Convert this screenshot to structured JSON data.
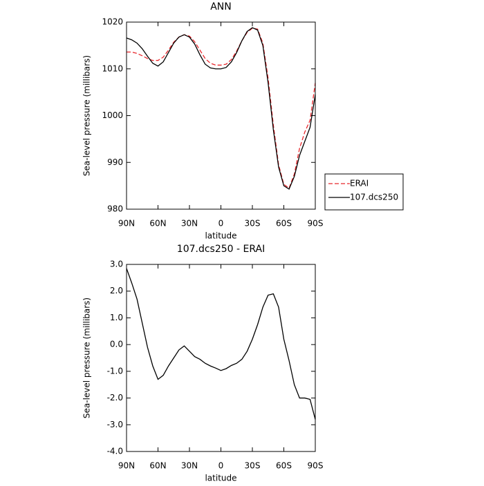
{
  "chart_data": [
    {
      "type": "line",
      "title": "ANN",
      "xlabel": "latitude",
      "ylabel": "Sea-level pressure (millibars)",
      "x": [
        90,
        85,
        80,
        75,
        70,
        65,
        60,
        55,
        50,
        45,
        40,
        35,
        30,
        25,
        20,
        15,
        10,
        5,
        0,
        -5,
        -10,
        -15,
        -20,
        -25,
        -30,
        -35,
        -40,
        -45,
        -50,
        -55,
        -60,
        -65,
        -70,
        -75,
        -80,
        -85,
        -90
      ],
      "series": [
        {
          "name": "ERAI",
          "color": "#e8262b",
          "dash": "dashed",
          "values": [
            1013.6,
            1013.6,
            1013.3,
            1012.8,
            1012.2,
            1011.8,
            1011.8,
            1012.5,
            1014.0,
            1015.7,
            1016.8,
            1017.3,
            1017.0,
            1015.8,
            1014.0,
            1012.2,
            1011.2,
            1010.8,
            1010.8,
            1011.0,
            1012.0,
            1013.8,
            1016.0,
            1017.8,
            1018.7,
            1018.5,
            1015.5,
            1008.0,
            998.0,
            989.5,
            985.3,
            984.5,
            987.5,
            993.0,
            996.5,
            999.0,
            1007.0
          ]
        },
        {
          "name": "107.dcs250",
          "color": "#000000",
          "dash": "solid",
          "values": [
            1016.6,
            1016.2,
            1015.5,
            1014.3,
            1012.7,
            1011.2,
            1010.6,
            1011.5,
            1013.5,
            1015.5,
            1016.8,
            1017.3,
            1016.8,
            1015.3,
            1013.0,
            1011.0,
            1010.2,
            1010.0,
            1010.0,
            1010.3,
            1011.5,
            1013.5,
            1016.0,
            1018.0,
            1018.8,
            1018.3,
            1015.0,
            1007.0,
            997.0,
            989.0,
            985.0,
            984.3,
            987.0,
            991.5,
            994.5,
            997.5,
            1004.5
          ]
        }
      ],
      "xlim": [
        90,
        -90
      ],
      "xticks": [
        {
          "value": 90,
          "label": "90N"
        },
        {
          "value": 60,
          "label": "60N"
        },
        {
          "value": 30,
          "label": "30N"
        },
        0,
        {
          "value": -30,
          "label": "30S"
        },
        {
          "value": -60,
          "label": "60S"
        },
        {
          "value": -90,
          "label": "90S"
        }
      ],
      "ylim": [
        980,
        1020
      ],
      "yticks": [
        980,
        990,
        1000,
        1010,
        1020
      ],
      "legend": "right"
    },
    {
      "type": "line",
      "title": "107.dcs250 - ERAI",
      "xlabel": "latitude",
      "ylabel": "Sea-level pressure (millibars)",
      "x": [
        90,
        85,
        80,
        75,
        70,
        65,
        60,
        55,
        50,
        45,
        40,
        35,
        30,
        25,
        20,
        15,
        10,
        5,
        0,
        -5,
        -10,
        -15,
        -20,
        -25,
        -30,
        -35,
        -40,
        -45,
        -50,
        -55,
        -60,
        -65,
        -70,
        -75,
        -80,
        -85,
        -90
      ],
      "values": [
        2.85,
        2.3,
        1.7,
        0.8,
        -0.1,
        -0.8,
        -1.3,
        -1.15,
        -0.8,
        -0.5,
        -0.2,
        -0.05,
        -0.25,
        -0.45,
        -0.55,
        -0.7,
        -0.8,
        -0.88,
        -0.97,
        -0.9,
        -0.78,
        -0.7,
        -0.55,
        -0.25,
        0.2,
        0.75,
        1.4,
        1.85,
        1.9,
        1.4,
        0.2,
        -0.6,
        -1.5,
        -2.0,
        -2.0,
        -2.05,
        -2.8
      ],
      "color": "#000000",
      "xlim": [
        90,
        -90
      ],
      "xticks": [
        {
          "value": 90,
          "label": "90N"
        },
        {
          "value": 60,
          "label": "60N"
        },
        {
          "value": 30,
          "label": "30N"
        },
        0,
        {
          "value": -30,
          "label": "30S"
        },
        {
          "value": -60,
          "label": "60S"
        },
        {
          "value": -90,
          "label": "90S"
        }
      ],
      "ylim": [
        -4,
        3
      ],
      "yticks": [
        {
          "value": -4,
          "label": "-4.0"
        },
        {
          "value": -3,
          "label": "-3.0"
        },
        {
          "value": -2,
          "label": "-2.0"
        },
        {
          "value": -1,
          "label": "-1.0"
        },
        {
          "value": 0,
          "label": "0.0"
        },
        {
          "value": 1,
          "label": "1.0"
        },
        {
          "value": 2,
          "label": "2.0"
        },
        {
          "value": 3,
          "label": "3.0"
        }
      ]
    }
  ]
}
